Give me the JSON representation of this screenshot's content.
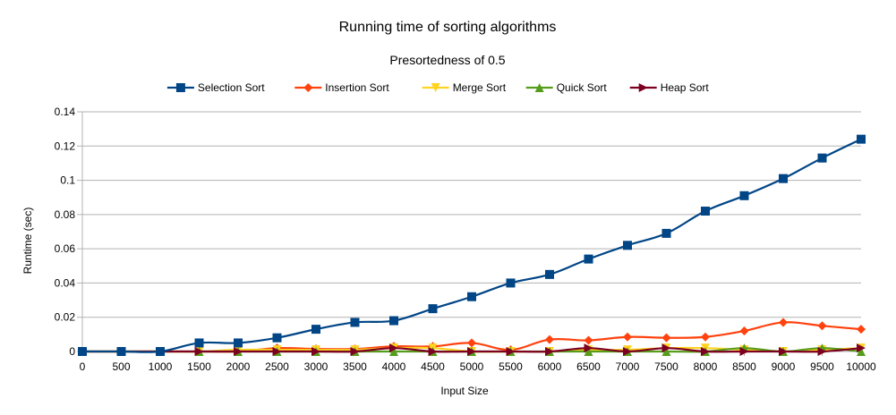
{
  "chart_data": {
    "type": "line",
    "title": "Running time of sorting algorithms",
    "subtitle": "Presortedness of 0.5",
    "xlabel": "Input Size",
    "ylabel": "Runtime (sec)",
    "x": [
      0,
      500,
      1000,
      1500,
      2000,
      2500,
      3000,
      3500,
      4000,
      4500,
      5000,
      5500,
      6000,
      6500,
      7000,
      7500,
      8000,
      8500,
      9000,
      9500,
      10000
    ],
    "ylim": [
      0,
      0.14
    ],
    "yticks": [
      "0",
      "0.02",
      "0.04",
      "0.06",
      "0.08",
      "0.1",
      "0.12",
      "0.14"
    ],
    "grid": true,
    "legend_position": "top",
    "series": [
      {
        "name": "Selection Sort",
        "color": "#004586",
        "marker": "square",
        "values": [
          0,
          0,
          0,
          0.005,
          0.005,
          0.008,
          0.013,
          0.017,
          0.018,
          0.025,
          0.032,
          0.04,
          0.045,
          0.054,
          0.062,
          0.069,
          0.082,
          0.091,
          0.101,
          0.113,
          0.124
        ]
      },
      {
        "name": "Insertion Sort",
        "color": "#ff420e",
        "marker": "diamond",
        "values": [
          0,
          0,
          0,
          0,
          0,
          0.002,
          0.0015,
          0.0015,
          0.003,
          0.003,
          0.005,
          0.001,
          0.007,
          0.0065,
          0.0085,
          0.008,
          0.0085,
          0.012,
          0.017,
          0.015,
          0.013
        ]
      },
      {
        "name": "Merge Sort",
        "color": "#ffd320",
        "marker": "triangle-down",
        "values": [
          0,
          0,
          0,
          0,
          0.001,
          0.001,
          0.001,
          0.001,
          0.002,
          0.002,
          0,
          0,
          0,
          0.001,
          0.001,
          0.002,
          0.002,
          0.001,
          0,
          0.001,
          0.002
        ]
      },
      {
        "name": "Quick Sort",
        "color": "#579d1c",
        "marker": "triangle-up",
        "values": [
          0,
          0,
          0,
          0,
          0,
          0,
          0,
          0,
          0,
          0,
          0,
          0,
          0,
          0,
          0,
          0,
          0,
          0.002,
          0,
          0.002,
          0
        ]
      },
      {
        "name": "Heap Sort",
        "color": "#7e0021",
        "marker": "triangle-right",
        "values": [
          0,
          0,
          0,
          0,
          0,
          0,
          0,
          0,
          0.002,
          0,
          0,
          0,
          0,
          0.002,
          0,
          0.002,
          0,
          0,
          0,
          0,
          0.002
        ]
      }
    ]
  }
}
